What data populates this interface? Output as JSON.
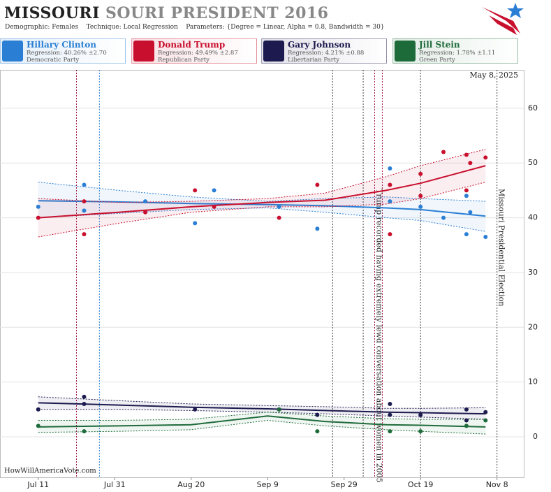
{
  "chart_data": {
    "type": "scatter",
    "title_main": "MISSOURI",
    "title_rest": "SOURI PRESIDENT 2016",
    "subtitle": "Demographic: Females    Technique: Local Regression    Parameters: {Degree = Linear, Alpha = 0.8, Bandwidth = 30}",
    "date_stamp": "May 8, 2025",
    "watermark": "HowWillAmericaVote.com",
    "xlim": [
      "2016-07-01",
      "2016-11-15"
    ],
    "xticks": [
      {
        "value": "2016-07-11",
        "label": "Jul 11"
      },
      {
        "value": "2016-07-31",
        "label": "Jul 31"
      },
      {
        "value": "2016-08-20",
        "label": "Aug 20"
      },
      {
        "value": "2016-09-09",
        "label": "Sep 9"
      },
      {
        "value": "2016-09-29",
        "label": "Sep 29"
      },
      {
        "value": "2016-10-19",
        "label": "Oct 19"
      },
      {
        "value": "2016-11-08",
        "label": "Nov 8"
      }
    ],
    "ylim": [
      -7.4,
      67
    ],
    "yticks": [
      0,
      10,
      20,
      30,
      40,
      50,
      60
    ],
    "grid": true,
    "fit_x": [
      "2016-07-11",
      "2016-08-01",
      "2016-08-20",
      "2016-09-09",
      "2016-09-24",
      "2016-10-10",
      "2016-10-19",
      "2016-11-05"
    ],
    "series": [
      {
        "name": "Hillary Clinton",
        "regression_label": "Regression: 40.26% ±2.70",
        "party": "Democratic Party",
        "color": "#2a7fd4",
        "x": [
          "2016-07-11",
          "2016-07-23",
          "2016-07-23",
          "2016-08-08",
          "2016-08-21",
          "2016-08-26",
          "2016-09-12",
          "2016-09-22",
          "2016-10-11",
          "2016-10-11",
          "2016-10-19",
          "2016-10-25",
          "2016-10-31",
          "2016-10-31",
          "2016-11-01",
          "2016-11-05"
        ],
        "values": [
          42,
          46,
          41.3,
          43,
          39,
          45,
          42,
          38,
          49,
          43,
          42,
          40,
          44,
          37,
          41,
          36.5
        ],
        "fit": [
          43.1,
          42.9,
          42.6,
          42.4,
          42.2,
          41.8,
          41.5,
          40.3
        ],
        "fit_upper": [
          46.5,
          45,
          43.8,
          43,
          43.5,
          43.8,
          43.5,
          43
        ],
        "fit_lower": [
          40,
          40.8,
          41.5,
          41.8,
          41,
          40,
          39.5,
          37.5
        ]
      },
      {
        "name": "Donald Trump",
        "regression_label": "Regression: 49.49% ±2.87",
        "party": "Republican Party",
        "color": "#c8102e",
        "x": [
          "2016-07-11",
          "2016-07-23",
          "2016-07-23",
          "2016-08-08",
          "2016-08-21",
          "2016-08-26",
          "2016-09-12",
          "2016-09-22",
          "2016-10-11",
          "2016-10-11",
          "2016-10-19",
          "2016-10-19",
          "2016-10-25",
          "2016-10-31",
          "2016-10-31",
          "2016-11-01",
          "2016-11-05"
        ],
        "values": [
          40,
          43,
          37,
          41,
          45,
          42,
          40,
          46,
          46,
          37,
          44,
          48,
          52,
          51.5,
          45,
          50,
          51
        ],
        "fit": [
          40,
          41,
          42,
          42.8,
          43.2,
          45,
          46.3,
          49.5
        ],
        "fit_upper": [
          43.5,
          42.8,
          43,
          43.5,
          44.5,
          47.5,
          49.5,
          52.5
        ],
        "fit_lower": [
          36.5,
          39,
          41,
          42,
          42,
          42.5,
          43.5,
          46.5
        ]
      },
      {
        "name": "Gary Johnson",
        "regression_label": "Regression: 4.21% ±0.88",
        "party": "Libertarian Party",
        "color": "#1c1a4e",
        "x": [
          "2016-07-11",
          "2016-07-23",
          "2016-07-23",
          "2016-08-21",
          "2016-09-12",
          "2016-09-22",
          "2016-10-11",
          "2016-10-11",
          "2016-10-19",
          "2016-10-31",
          "2016-10-31",
          "2016-11-05"
        ],
        "values": [
          5,
          7.3,
          6,
          5,
          5,
          4,
          6,
          4,
          4,
          5,
          3,
          4.5
        ],
        "fit": [
          6.2,
          5.8,
          5.4,
          5.1,
          4.8,
          4.5,
          4.4,
          4.2
        ],
        "fit_upper": [
          7.3,
          6.6,
          6,
          5.7,
          5.5,
          5.2,
          5.2,
          5.3
        ],
        "fit_lower": [
          5,
          5,
          4.8,
          4.5,
          4.2,
          3.8,
          3.6,
          3.2
        ]
      },
      {
        "name": "Jill Stein",
        "regression_label": "Regression: 1.78% ±1.11",
        "party": "Green Party",
        "color": "#1e6b3a",
        "x": [
          "2016-07-11",
          "2016-07-23",
          "2016-09-12",
          "2016-09-22",
          "2016-10-11",
          "2016-10-19",
          "2016-10-31",
          "2016-11-05"
        ],
        "values": [
          2,
          1,
          5,
          1,
          1,
          1,
          2,
          3
        ],
        "fit": [
          1.8,
          2,
          2.2,
          3.8,
          2.8,
          2.2,
          2.1,
          1.8
        ],
        "fit_upper": [
          3,
          3,
          3.2,
          4.5,
          3.8,
          3.3,
          3.2,
          3.2
        ],
        "fit_lower": [
          0.8,
          1,
          1.3,
          3,
          2,
          1.3,
          1,
          0.5
        ]
      }
    ],
    "events": [
      {
        "date": "2016-07-21",
        "color": "#a0144a"
      },
      {
        "date": "2016-07-27",
        "color": "#2a7fd4"
      },
      {
        "date": "2016-09-26",
        "color": "#444"
      },
      {
        "date": "2016-10-04",
        "color": "#444"
      },
      {
        "date": "2016-10-07",
        "color": "#a0144a",
        "label": "Trump recorded having extremely lewd conversation about women in 2005"
      },
      {
        "date": "2016-10-09",
        "color": "#a0144a"
      },
      {
        "date": "2016-10-19",
        "color": "#444"
      },
      {
        "date": "2016-11-08",
        "color": "#444",
        "label": "Missouri Presidential Election"
      }
    ]
  }
}
